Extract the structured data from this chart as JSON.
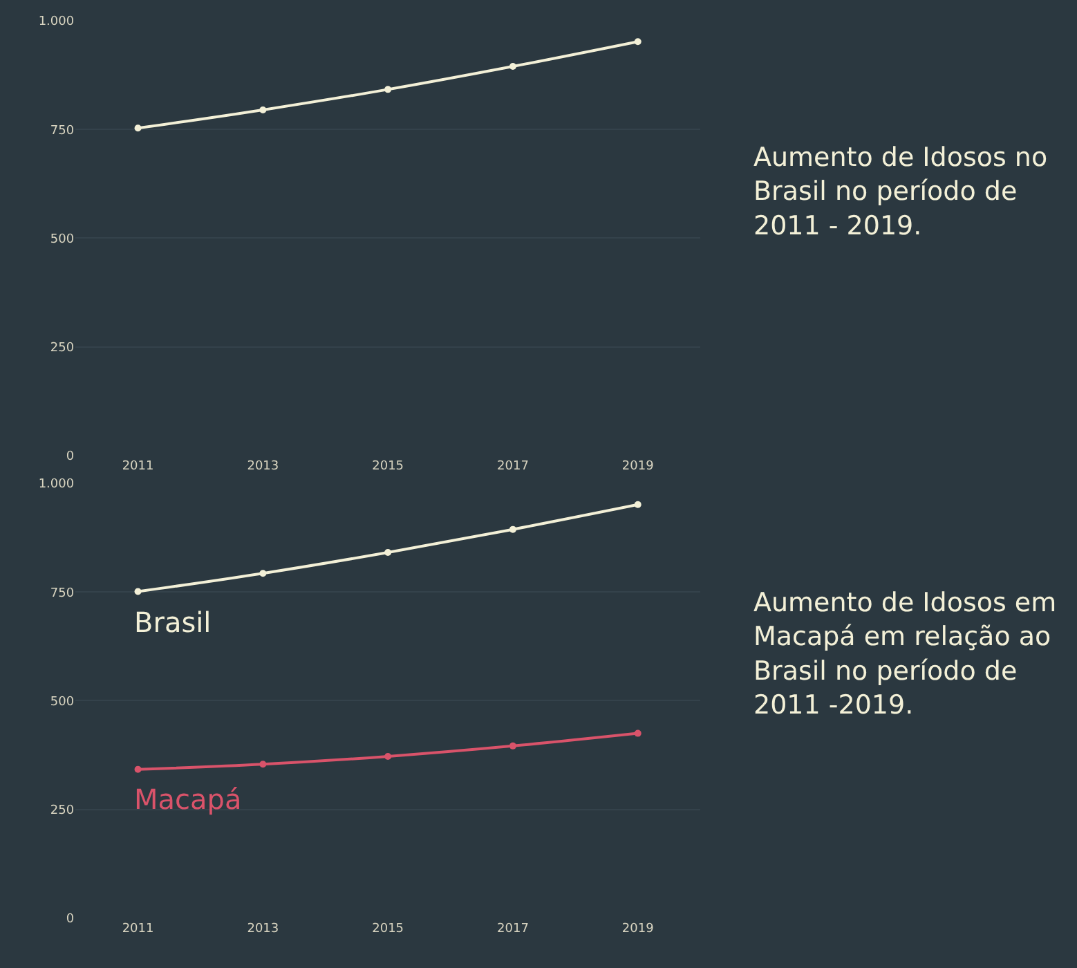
{
  "chart_data": [
    {
      "type": "line",
      "categories": [
        "2011",
        "2013",
        "2015",
        "2017",
        "2019"
      ],
      "series": [
        {
          "color": "#f3f0d7",
          "values": [
            753,
            795,
            842,
            895,
            952
          ]
        }
      ],
      "ylim": [
        0,
        1000
      ],
      "yticks": [
        0,
        250,
        500,
        750,
        {
          "value": 1000,
          "label": "1.000"
        }
      ],
      "grid": "y",
      "marker": "circle",
      "line_style": "solid",
      "legend": false,
      "annotations": [
        "Aumento de Idosos no Brasil no período de 2011 - 2019."
      ]
    },
    {
      "type": "line",
      "categories": [
        "2011",
        "2013",
        "2015",
        "2017",
        "2019"
      ],
      "series": [
        {
          "name": "Brasil",
          "color": "#f3f0d7",
          "values": [
            751,
            793,
            841,
            894,
            951
          ]
        },
        {
          "name": "Macapá",
          "color": "#d9536a",
          "values": [
            342,
            354,
            372,
            396,
            425
          ]
        }
      ],
      "ylim": [
        0,
        1000
      ],
      "yticks": [
        0,
        250,
        500,
        750,
        {
          "value": 1000,
          "label": "1.000"
        }
      ],
      "grid": "y",
      "marker": "circle",
      "line_style": "solid",
      "legend": false,
      "annotations": [
        "Aumento de Idosos em Macapá em relação ao Brasil no período de 2011 -2019."
      ]
    }
  ]
}
